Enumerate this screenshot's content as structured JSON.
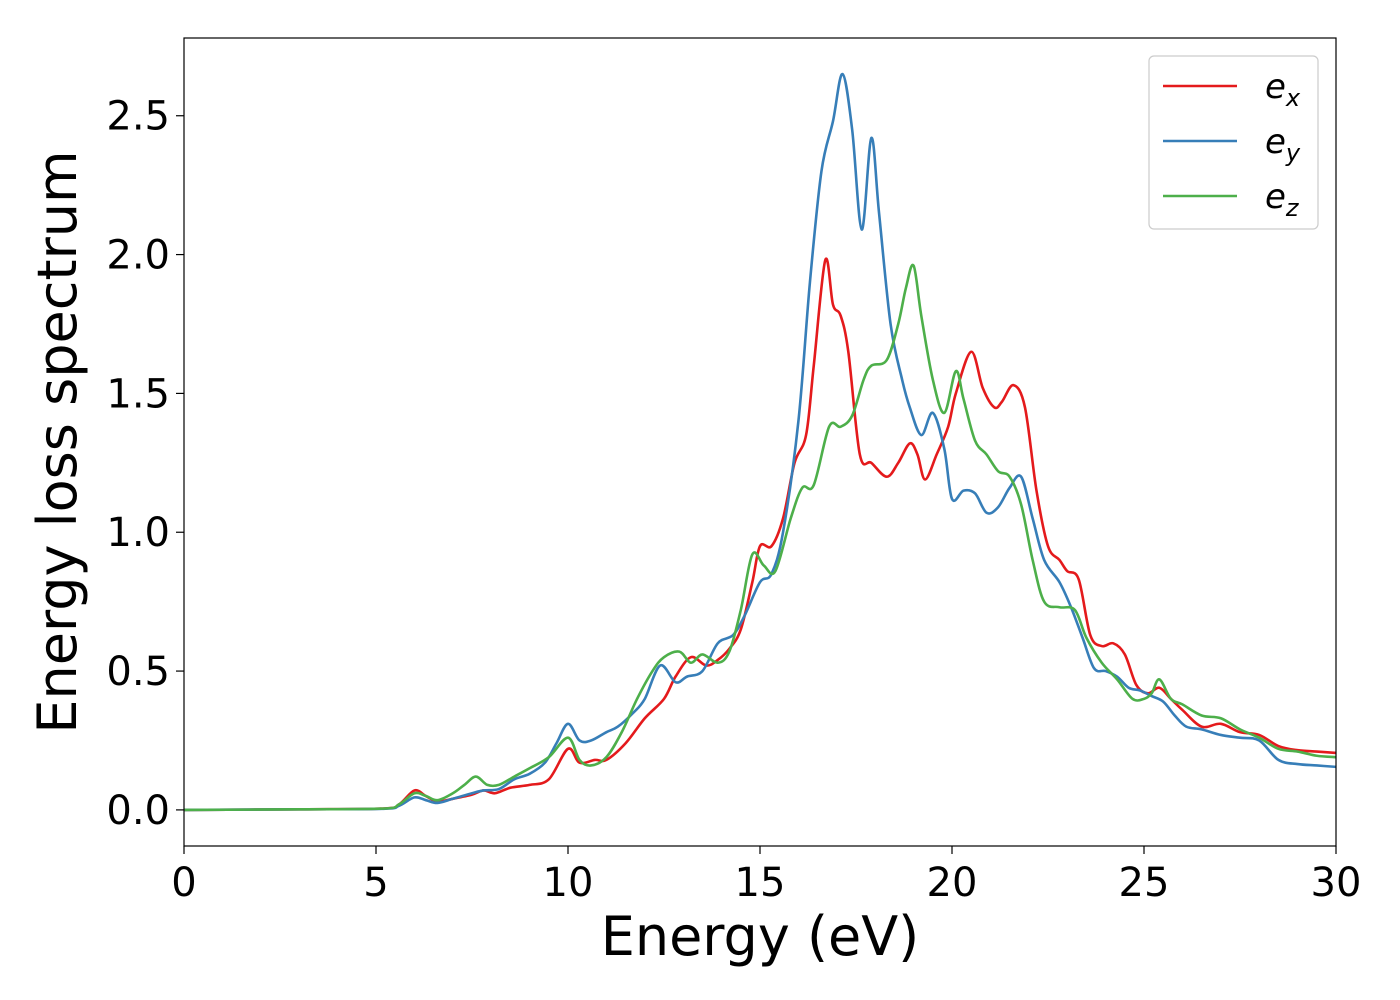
{
  "chart_data": {
    "type": "line",
    "title": "",
    "xlabel": "Energy (eV)",
    "ylabel": "Energy loss spectrum",
    "xlim": [
      0,
      30
    ],
    "ylim": [
      -0.13,
      2.78
    ],
    "grid": false,
    "legend_position": "top-right",
    "x_ticks": [
      {
        "value": 0,
        "label": "0"
      },
      {
        "value": 5,
        "label": "5"
      },
      {
        "value": 10,
        "label": "10"
      },
      {
        "value": 15,
        "label": "15"
      },
      {
        "value": 20,
        "label": "20"
      },
      {
        "value": 25,
        "label": "25"
      },
      {
        "value": 30,
        "label": "30"
      }
    ],
    "y_ticks": [
      {
        "value": 0.0,
        "label": "0.0"
      },
      {
        "value": 0.5,
        "label": "0.5"
      },
      {
        "value": 1.0,
        "label": "1.0"
      },
      {
        "value": 1.5,
        "label": "1.5"
      },
      {
        "value": 2.0,
        "label": "2.0"
      },
      {
        "value": 2.5,
        "label": "2.5"
      }
    ],
    "series": [
      {
        "key": "ex",
        "name": "e",
        "sub": "x",
        "color": "#e41a1c",
        "points": [
          [
            0,
            0
          ],
          [
            3,
            0.002
          ],
          [
            5.2,
            0.005
          ],
          [
            5.6,
            0.02
          ],
          [
            6.0,
            0.07
          ],
          [
            6.3,
            0.05
          ],
          [
            6.6,
            0.03
          ],
          [
            7.0,
            0.04
          ],
          [
            7.5,
            0.055
          ],
          [
            7.8,
            0.07
          ],
          [
            8.1,
            0.06
          ],
          [
            8.5,
            0.08
          ],
          [
            9.0,
            0.09
          ],
          [
            9.5,
            0.11
          ],
          [
            10.0,
            0.22
          ],
          [
            10.3,
            0.17
          ],
          [
            10.7,
            0.18
          ],
          [
            11.0,
            0.18
          ],
          [
            11.5,
            0.24
          ],
          [
            12.0,
            0.33
          ],
          [
            12.5,
            0.4
          ],
          [
            12.8,
            0.48
          ],
          [
            13.2,
            0.55
          ],
          [
            13.6,
            0.52
          ],
          [
            13.9,
            0.54
          ],
          [
            14.2,
            0.58
          ],
          [
            14.5,
            0.65
          ],
          [
            14.8,
            0.82
          ],
          [
            15.0,
            0.95
          ],
          [
            15.3,
            0.95
          ],
          [
            15.6,
            1.05
          ],
          [
            15.9,
            1.25
          ],
          [
            16.2,
            1.35
          ],
          [
            16.4,
            1.6
          ],
          [
            16.7,
            1.98
          ],
          [
            16.9,
            1.82
          ],
          [
            17.1,
            1.78
          ],
          [
            17.3,
            1.65
          ],
          [
            17.6,
            1.28
          ],
          [
            17.9,
            1.25
          ],
          [
            18.3,
            1.2
          ],
          [
            18.6,
            1.25
          ],
          [
            18.9,
            1.32
          ],
          [
            19.1,
            1.28
          ],
          [
            19.3,
            1.19
          ],
          [
            19.6,
            1.28
          ],
          [
            19.9,
            1.38
          ],
          [
            20.1,
            1.5
          ],
          [
            20.5,
            1.65
          ],
          [
            20.8,
            1.52
          ],
          [
            21.1,
            1.45
          ],
          [
            21.3,
            1.47
          ],
          [
            21.6,
            1.53
          ],
          [
            21.9,
            1.45
          ],
          [
            22.2,
            1.15
          ],
          [
            22.5,
            0.95
          ],
          [
            22.8,
            0.9
          ],
          [
            23.0,
            0.86
          ],
          [
            23.3,
            0.83
          ],
          [
            23.6,
            0.63
          ],
          [
            23.9,
            0.59
          ],
          [
            24.2,
            0.6
          ],
          [
            24.5,
            0.56
          ],
          [
            24.8,
            0.45
          ],
          [
            25.1,
            0.42
          ],
          [
            25.4,
            0.44
          ],
          [
            25.7,
            0.4
          ],
          [
            26.0,
            0.36
          ],
          [
            26.5,
            0.3
          ],
          [
            27.0,
            0.31
          ],
          [
            27.5,
            0.28
          ],
          [
            28.0,
            0.27
          ],
          [
            28.5,
            0.23
          ],
          [
            29.0,
            0.215
          ],
          [
            29.5,
            0.21
          ],
          [
            30.0,
            0.205
          ]
        ]
      },
      {
        "key": "ey",
        "name": "e",
        "sub": "y",
        "color": "#377eb8",
        "points": [
          [
            0,
            0
          ],
          [
            3,
            0.002
          ],
          [
            5.2,
            0.004
          ],
          [
            5.6,
            0.015
          ],
          [
            6.0,
            0.045
          ],
          [
            6.3,
            0.035
          ],
          [
            6.6,
            0.025
          ],
          [
            7.0,
            0.04
          ],
          [
            7.5,
            0.06
          ],
          [
            7.8,
            0.07
          ],
          [
            8.2,
            0.075
          ],
          [
            8.6,
            0.11
          ],
          [
            9.0,
            0.13
          ],
          [
            9.4,
            0.17
          ],
          [
            9.7,
            0.24
          ],
          [
            10.0,
            0.31
          ],
          [
            10.3,
            0.25
          ],
          [
            10.6,
            0.25
          ],
          [
            11.0,
            0.28
          ],
          [
            11.3,
            0.3
          ],
          [
            11.7,
            0.35
          ],
          [
            12.0,
            0.4
          ],
          [
            12.4,
            0.52
          ],
          [
            12.8,
            0.46
          ],
          [
            13.1,
            0.48
          ],
          [
            13.5,
            0.5
          ],
          [
            13.9,
            0.6
          ],
          [
            14.3,
            0.63
          ],
          [
            14.6,
            0.7
          ],
          [
            15.0,
            0.82
          ],
          [
            15.3,
            0.85
          ],
          [
            15.6,
            1.0
          ],
          [
            16.0,
            1.4
          ],
          [
            16.3,
            1.9
          ],
          [
            16.6,
            2.3
          ],
          [
            16.9,
            2.48
          ],
          [
            17.15,
            2.65
          ],
          [
            17.4,
            2.45
          ],
          [
            17.65,
            2.09
          ],
          [
            17.9,
            2.42
          ],
          [
            18.1,
            2.15
          ],
          [
            18.4,
            1.75
          ],
          [
            18.7,
            1.55
          ],
          [
            18.9,
            1.45
          ],
          [
            19.2,
            1.35
          ],
          [
            19.5,
            1.43
          ],
          [
            19.8,
            1.3
          ],
          [
            20.0,
            1.12
          ],
          [
            20.3,
            1.15
          ],
          [
            20.6,
            1.14
          ],
          [
            20.9,
            1.07
          ],
          [
            21.2,
            1.09
          ],
          [
            21.5,
            1.16
          ],
          [
            21.8,
            1.2
          ],
          [
            22.1,
            1.05
          ],
          [
            22.4,
            0.9
          ],
          [
            22.8,
            0.82
          ],
          [
            23.1,
            0.73
          ],
          [
            23.4,
            0.62
          ],
          [
            23.7,
            0.51
          ],
          [
            24.0,
            0.5
          ],
          [
            24.3,
            0.48
          ],
          [
            24.6,
            0.44
          ],
          [
            24.9,
            0.43
          ],
          [
            25.2,
            0.41
          ],
          [
            25.5,
            0.39
          ],
          [
            25.8,
            0.34
          ],
          [
            26.1,
            0.3
          ],
          [
            26.5,
            0.29
          ],
          [
            27.0,
            0.27
          ],
          [
            27.5,
            0.26
          ],
          [
            28.0,
            0.25
          ],
          [
            28.5,
            0.18
          ],
          [
            29.0,
            0.165
          ],
          [
            29.5,
            0.16
          ],
          [
            30.0,
            0.155
          ]
        ]
      },
      {
        "key": "ez",
        "name": "e",
        "sub": "z",
        "color": "#4daf4a",
        "points": [
          [
            0,
            0
          ],
          [
            3,
            0.002
          ],
          [
            5.2,
            0.005
          ],
          [
            5.6,
            0.02
          ],
          [
            6.0,
            0.06
          ],
          [
            6.3,
            0.05
          ],
          [
            6.6,
            0.035
          ],
          [
            7.0,
            0.06
          ],
          [
            7.3,
            0.09
          ],
          [
            7.6,
            0.12
          ],
          [
            7.9,
            0.09
          ],
          [
            8.2,
            0.09
          ],
          [
            8.6,
            0.12
          ],
          [
            9.0,
            0.15
          ],
          [
            9.5,
            0.19
          ],
          [
            10.0,
            0.26
          ],
          [
            10.3,
            0.18
          ],
          [
            10.6,
            0.16
          ],
          [
            11.0,
            0.19
          ],
          [
            11.4,
            0.28
          ],
          [
            11.8,
            0.4
          ],
          [
            12.2,
            0.5
          ],
          [
            12.5,
            0.55
          ],
          [
            12.9,
            0.57
          ],
          [
            13.2,
            0.53
          ],
          [
            13.5,
            0.56
          ],
          [
            13.9,
            0.53
          ],
          [
            14.2,
            0.57
          ],
          [
            14.5,
            0.72
          ],
          [
            14.8,
            0.92
          ],
          [
            15.1,
            0.88
          ],
          [
            15.4,
            0.86
          ],
          [
            15.8,
            1.05
          ],
          [
            16.1,
            1.16
          ],
          [
            16.4,
            1.17
          ],
          [
            16.8,
            1.38
          ],
          [
            17.1,
            1.38
          ],
          [
            17.4,
            1.42
          ],
          [
            17.7,
            1.55
          ],
          [
            17.9,
            1.6
          ],
          [
            18.3,
            1.62
          ],
          [
            18.6,
            1.75
          ],
          [
            18.8,
            1.88
          ],
          [
            19.0,
            1.96
          ],
          [
            19.2,
            1.78
          ],
          [
            19.5,
            1.55
          ],
          [
            19.8,
            1.43
          ],
          [
            20.1,
            1.58
          ],
          [
            20.3,
            1.48
          ],
          [
            20.6,
            1.33
          ],
          [
            20.9,
            1.28
          ],
          [
            21.2,
            1.22
          ],
          [
            21.5,
            1.2
          ],
          [
            21.8,
            1.1
          ],
          [
            22.1,
            0.9
          ],
          [
            22.4,
            0.75
          ],
          [
            22.8,
            0.73
          ],
          [
            23.2,
            0.72
          ],
          [
            23.5,
            0.62
          ],
          [
            23.9,
            0.53
          ],
          [
            24.3,
            0.47
          ],
          [
            24.7,
            0.4
          ],
          [
            25.0,
            0.4
          ],
          [
            25.2,
            0.42
          ],
          [
            25.4,
            0.47
          ],
          [
            25.7,
            0.4
          ],
          [
            26.0,
            0.38
          ],
          [
            26.5,
            0.34
          ],
          [
            27.0,
            0.33
          ],
          [
            27.5,
            0.29
          ],
          [
            28.0,
            0.26
          ],
          [
            28.5,
            0.22
          ],
          [
            29.0,
            0.21
          ],
          [
            29.5,
            0.195
          ],
          [
            30.0,
            0.19
          ]
        ]
      }
    ]
  }
}
